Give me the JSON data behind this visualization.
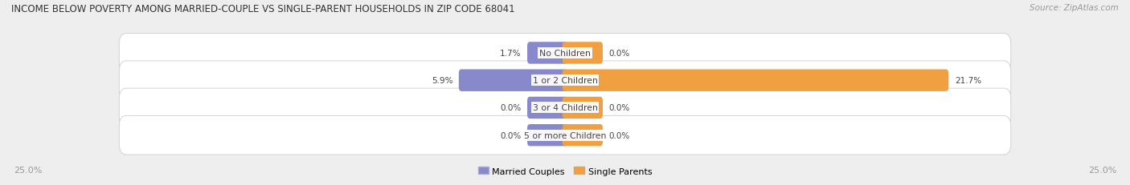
{
  "title": "INCOME BELOW POVERTY AMONG MARRIED-COUPLE VS SINGLE-PARENT HOUSEHOLDS IN ZIP CODE 68041",
  "source": "Source: ZipAtlas.com",
  "categories": [
    "No Children",
    "1 or 2 Children",
    "3 or 4 Children",
    "5 or more Children"
  ],
  "married_values": [
    1.7,
    5.9,
    0.0,
    0.0
  ],
  "single_values": [
    0.0,
    21.7,
    0.0,
    0.0
  ],
  "max_value": 25.0,
  "married_color": "#8888cc",
  "single_color": "#f0a040",
  "bg_color": "#eeeeee",
  "row_bg_color": "#f8f8f8",
  "row_border_color": "#cccccc",
  "title_color": "#333333",
  "value_color": "#444444",
  "label_color": "#444444",
  "source_color": "#999999",
  "axis_label_color": "#999999",
  "min_bar_width": 2.0
}
